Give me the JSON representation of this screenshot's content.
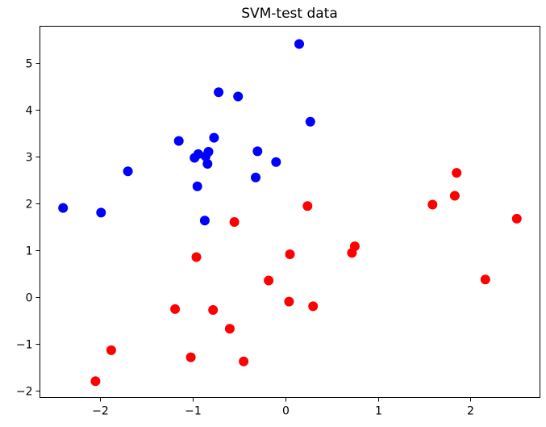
{
  "chart_data": {
    "type": "scatter",
    "title": "SVM-test data",
    "xlabel": "",
    "ylabel": "",
    "xlim": [
      -2.65,
      2.75
    ],
    "ylim": [
      -2.15,
      5.78
    ],
    "xticks": [
      -2,
      -1,
      0,
      1,
      2
    ],
    "yticks": [
      -2,
      -1,
      0,
      1,
      2,
      3,
      4,
      5
    ],
    "xtick_labels": [
      "−2",
      "−1",
      "0",
      "1",
      "2"
    ],
    "ytick_labels": [
      "−2",
      "−1",
      "0",
      "1",
      "2",
      "3",
      "4",
      "5"
    ],
    "grid": false,
    "series": [
      {
        "color": "#0000ff",
        "points": [
          [
            -2.4,
            1.9
          ],
          [
            -1.99,
            1.8
          ],
          [
            -1.7,
            2.68
          ],
          [
            -1.15,
            3.33
          ],
          [
            -0.98,
            2.97
          ],
          [
            -0.94,
            3.05
          ],
          [
            -0.95,
            2.36
          ],
          [
            -0.86,
            3.0
          ],
          [
            -0.83,
            3.1
          ],
          [
            -0.84,
            2.84
          ],
          [
            -0.77,
            3.4
          ],
          [
            -0.87,
            1.63
          ],
          [
            -0.72,
            4.37
          ],
          [
            -0.51,
            4.28
          ],
          [
            -0.3,
            3.11
          ],
          [
            -0.32,
            2.55
          ],
          [
            -0.1,
            2.88
          ],
          [
            0.15,
            5.4
          ],
          [
            0.27,
            3.74
          ]
        ]
      },
      {
        "color": "#ff0000",
        "points": [
          [
            -2.05,
            -1.8
          ],
          [
            -1.88,
            -1.14
          ],
          [
            -1.19,
            -0.26
          ],
          [
            -1.02,
            -1.29
          ],
          [
            -0.96,
            0.85
          ],
          [
            -0.78,
            -0.28
          ],
          [
            -0.6,
            -0.68
          ],
          [
            -0.55,
            1.6
          ],
          [
            -0.45,
            -1.38
          ],
          [
            -0.18,
            0.35
          ],
          [
            0.04,
            -0.1
          ],
          [
            0.05,
            0.91
          ],
          [
            0.24,
            1.94
          ],
          [
            0.3,
            -0.2
          ],
          [
            0.72,
            0.94
          ],
          [
            0.75,
            1.08
          ],
          [
            1.59,
            1.97
          ],
          [
            1.83,
            2.16
          ],
          [
            1.85,
            2.65
          ],
          [
            2.16,
            0.37
          ],
          [
            2.5,
            1.67
          ]
        ]
      }
    ]
  }
}
